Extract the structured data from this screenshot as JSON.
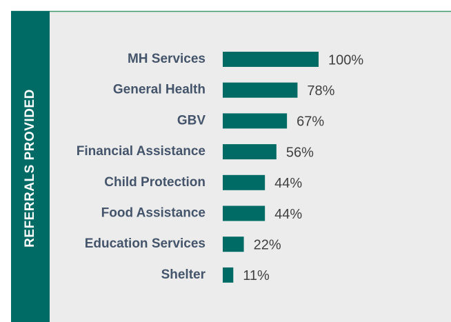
{
  "chart_data": {
    "type": "bar",
    "orientation": "horizontal",
    "ylabel": "REFERRALS PROVIDED",
    "categories": [
      "MH Services",
      "General Health",
      "GBV",
      "Financial Assistance",
      "Child Protection",
      "Food Assistance",
      "Education Services",
      "Shelter"
    ],
    "values": [
      100,
      78,
      67,
      56,
      44,
      44,
      22,
      11
    ],
    "value_labels": [
      "100%",
      "78%",
      "67%",
      "56%",
      "44%",
      "44%",
      "22%",
      "11%"
    ],
    "color": "#006b65"
  }
}
